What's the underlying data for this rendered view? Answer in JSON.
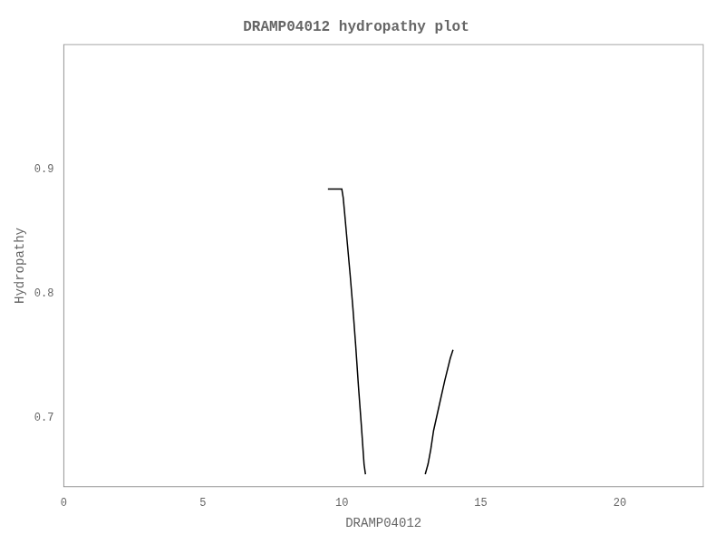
{
  "chart_data": {
    "type": "line",
    "title": "DRAMP04012 hydropathy plot",
    "x_label": "DRAMP04012",
    "y_label": "Hydropathy",
    "xlim": [
      0,
      23
    ],
    "ylim": [
      0.645,
      1.0
    ],
    "xticks": [
      0,
      5,
      10,
      15,
      20
    ],
    "yticks": [
      0.7,
      0.8,
      0.9
    ],
    "grid": false,
    "series": [
      {
        "color": "black",
        "x": [
          9.5,
          10.0,
          10.05,
          10.1,
          10.2,
          10.3,
          10.4,
          10.5,
          10.6,
          10.7,
          10.8,
          10.85
        ],
        "values": [
          0.884,
          0.884,
          0.877,
          0.865,
          0.84,
          0.815,
          0.788,
          0.758,
          0.725,
          0.695,
          0.663,
          0.655
        ]
      },
      {
        "color": "black",
        "x": [
          13.0,
          13.1,
          13.2,
          13.3,
          13.5,
          13.7,
          13.9,
          14.0
        ],
        "values": [
          0.655,
          0.663,
          0.675,
          0.69,
          0.71,
          0.73,
          0.748,
          0.755
        ]
      }
    ]
  }
}
